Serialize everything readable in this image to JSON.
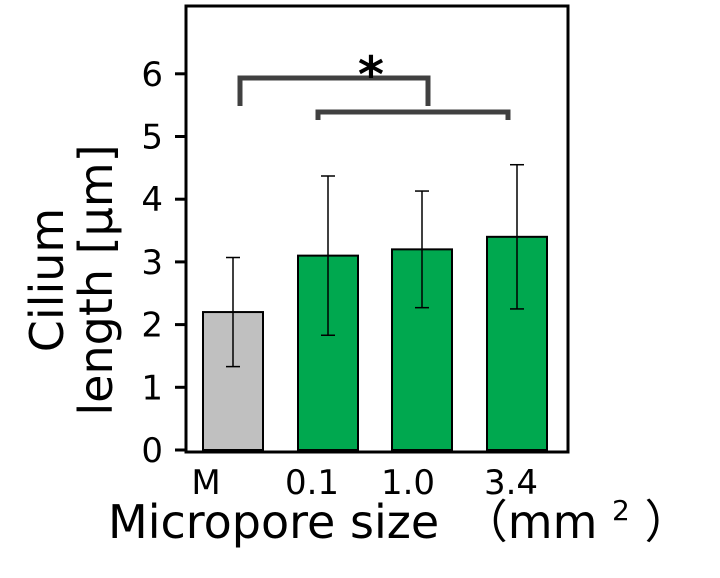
{
  "chart_data": {
    "type": "bar",
    "categories": [
      "M",
      "0.1",
      "1.0",
      "3.4"
    ],
    "values": [
      2.2,
      3.1,
      3.2,
      3.4
    ],
    "errors": [
      0.87,
      1.27,
      0.93,
      1.15
    ],
    "bar_colors": [
      "#c0c0c0",
      "#00a84f",
      "#00a84f",
      "#00a84f"
    ],
    "xlabel_main": "Micropore size",
    "xlabel_unit": "（mm",
    "xlabel_sup": "2",
    "xlabel_close": "）",
    "ylabel_line1": "Cilium",
    "ylabel_line2": "length [μm]",
    "ylim": [
      0,
      7
    ],
    "yticks": [
      "0",
      "1",
      "2",
      "3",
      "4",
      "5",
      "6"
    ],
    "significance": "*",
    "grid": false
  }
}
